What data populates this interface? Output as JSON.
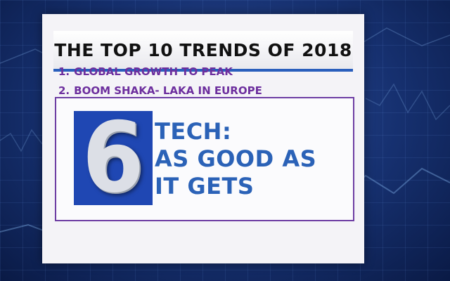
{
  "slide": {
    "title": "THE TOP 10 TRENDS OF 2018",
    "trends": [
      {
        "number": "1.",
        "label": "GLOBAL GROWTH TO PEAK"
      },
      {
        "number": "2.",
        "label": "BOOM SHAKA- LAKA IN EUROPE"
      }
    ],
    "feature": {
      "number": "6",
      "headline_lines": [
        "TECH:",
        "AS GOOD AS",
        "IT GETS"
      ]
    }
  },
  "colors": {
    "title_underline": "#2a5fbd",
    "trend_text": "#6d2f9e",
    "feature_border": "#6d3da3",
    "number_tile": "#1f47b3",
    "headline_text": "#2b62b7",
    "background": "#16306f"
  }
}
